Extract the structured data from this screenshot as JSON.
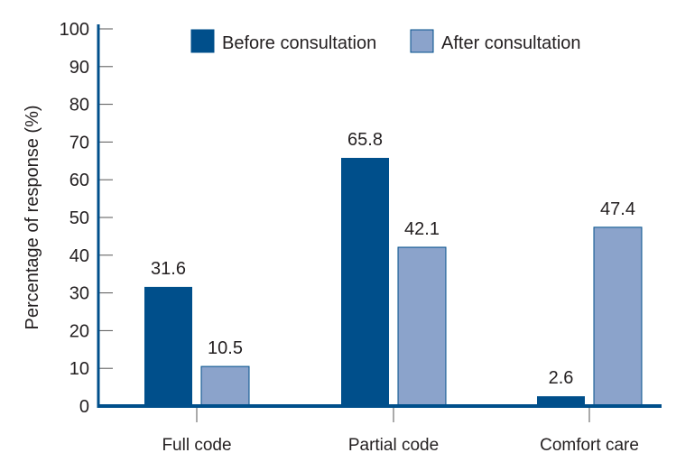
{
  "chart_data": {
    "type": "bar",
    "title": "",
    "xlabel": "",
    "ylabel": "Percentage of response (%)",
    "ylim": [
      0,
      100
    ],
    "yticks": [
      0,
      10,
      20,
      30,
      40,
      50,
      60,
      70,
      80,
      90,
      100
    ],
    "grid": false,
    "legend_position": "top-right",
    "categories": [
      "Full code",
      "Partial code",
      "Comfort care"
    ],
    "series": [
      {
        "name": "Before consultation",
        "color": "#004f8b",
        "values": [
          31.6,
          65.8,
          2.6
        ],
        "labels": [
          "31.6",
          "65.8",
          "2.6"
        ]
      },
      {
        "name": "After consultation",
        "color": "#8ba3cb",
        "values": [
          10.5,
          42.1,
          47.4
        ],
        "labels": [
          "10.5",
          "42.1",
          "47.4"
        ]
      }
    ],
    "colors": {
      "axis": "#004f8b",
      "bar_outline": "#004f8b",
      "tick": "#555555"
    }
  }
}
